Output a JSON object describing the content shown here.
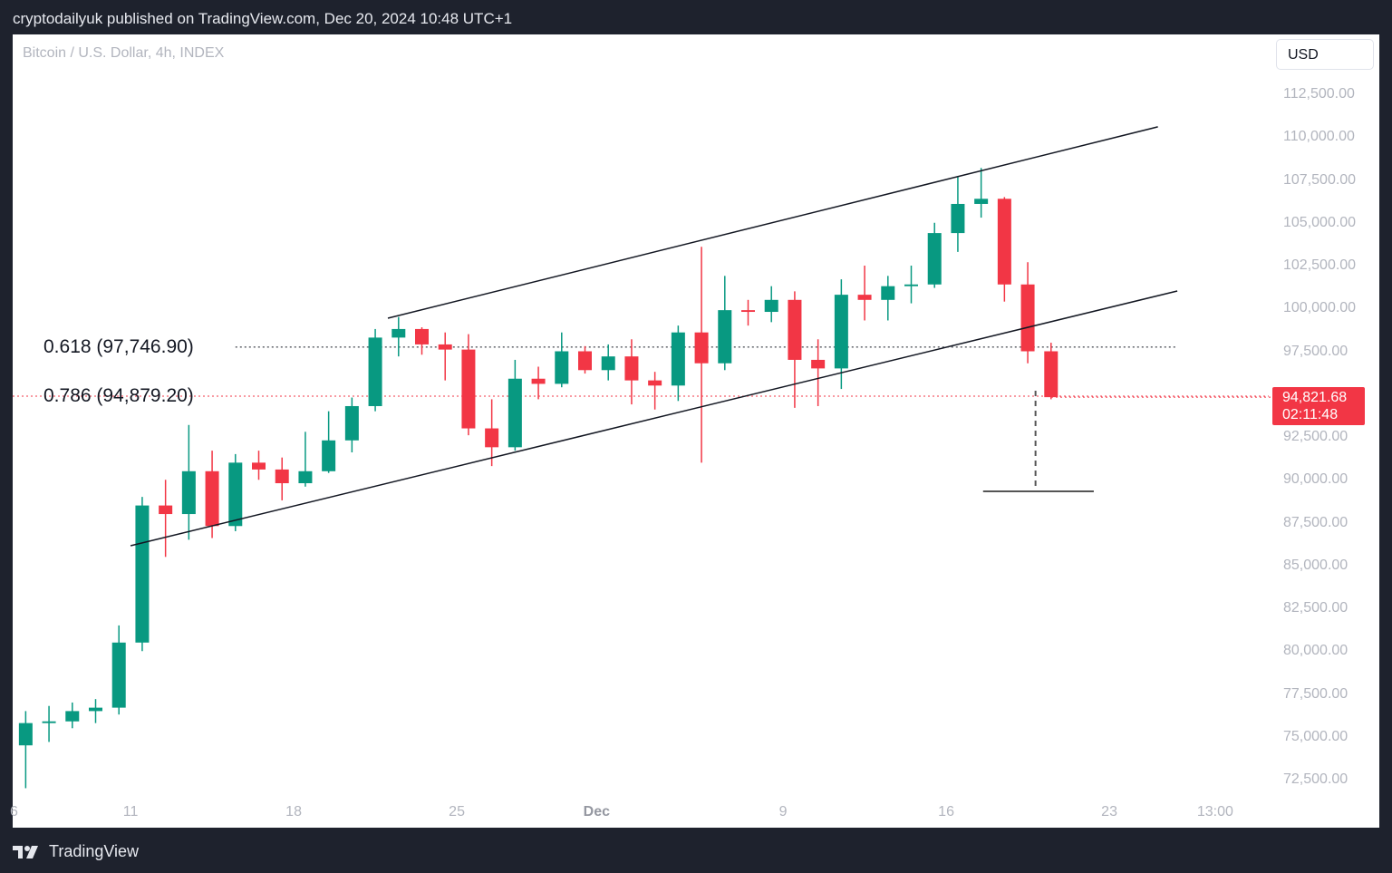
{
  "header": {
    "published": "cryptodailyuk published on TradingView.com, Dec 20, 2024 10:48 UTC+1"
  },
  "symbol": "Bitcoin / U.S. Dollar, 4h, INDEX",
  "currency_button": "USD",
  "brand": "TradingView",
  "colors": {
    "up": "#089981",
    "down": "#f23645",
    "line": "#131722",
    "background": "#1e222d"
  },
  "chart_data": {
    "type": "candlestick",
    "interval_shown": "4h",
    "ylim": [
      71500,
      114000
    ],
    "grid": false,
    "y_ticks": [
      "112,500.00",
      "110,000.00",
      "107,500.00",
      "105,000.00",
      "102,500.00",
      "100,000.00",
      "97,500.00",
      "92,500.00",
      "90,000.00",
      "87,500.00",
      "85,000.00",
      "82,500.00",
      "80,000.00",
      "77,500.00",
      "75,000.00",
      "72,500.00"
    ],
    "y_tick_values": [
      112500,
      110000,
      107500,
      105000,
      102500,
      100000,
      97500,
      92500,
      90000,
      87500,
      85000,
      82500,
      80000,
      77500,
      75000,
      72500
    ],
    "x_ticks": [
      {
        "label": "6",
        "date": "2024-11-06T00:00"
      },
      {
        "label": "11",
        "date": "2024-11-11T00:00"
      },
      {
        "label": "18",
        "date": "2024-11-18T00:00"
      },
      {
        "label": "25",
        "date": "2024-11-25T00:00"
      },
      {
        "label": "Dec",
        "date": "2024-12-01T00:00",
        "bold": true
      },
      {
        "label": "9",
        "date": "2024-12-09T00:00"
      },
      {
        "label": "16",
        "date": "2024-12-16T00:00"
      },
      {
        "label": "23",
        "date": "2024-12-23T00:00"
      },
      {
        "label": "13:00",
        "date": "2024-12-27T13:00"
      }
    ],
    "candles": [
      [
        "2024-11-06",
        74500,
        76500,
        72000,
        75800
      ],
      [
        "2024-11-07",
        75800,
        76800,
        74700,
        75900
      ],
      [
        "2024-11-08",
        75900,
        77000,
        75500,
        76500
      ],
      [
        "2024-11-09",
        76500,
        77200,
        75800,
        76700
      ],
      [
        "2024-11-10",
        76700,
        81500,
        76300,
        80500
      ],
      [
        "2024-11-11",
        80500,
        89000,
        80000,
        88500
      ],
      [
        "2024-11-12",
        88500,
        90000,
        85500,
        88000
      ],
      [
        "2024-11-13",
        88000,
        93200,
        86500,
        90500
      ],
      [
        "2024-11-14",
        90500,
        91700,
        86600,
        87300
      ],
      [
        "2024-11-15",
        87300,
        91500,
        87000,
        91000
      ],
      [
        "2024-11-16",
        91000,
        91700,
        90000,
        90600
      ],
      [
        "2024-11-17",
        90600,
        91300,
        88800,
        89800
      ],
      [
        "2024-11-18",
        89800,
        92800,
        89600,
        90500
      ],
      [
        "2024-11-19",
        90500,
        94000,
        90400,
        92300
      ],
      [
        "2024-11-20",
        92300,
        94800,
        91600,
        94300
      ],
      [
        "2024-11-21",
        94300,
        98800,
        94000,
        98300
      ],
      [
        "2024-11-22",
        98300,
        99500,
        97200,
        98800
      ],
      [
        "2024-11-23",
        98800,
        98900,
        97300,
        97900
      ],
      [
        "2024-11-24",
        97900,
        98600,
        95800,
        97600
      ],
      [
        "2024-11-25",
        97600,
        98500,
        92600,
        93000
      ],
      [
        "2024-11-26",
        93000,
        94700,
        90800,
        91900
      ],
      [
        "2024-11-27",
        91900,
        97000,
        91700,
        95900
      ],
      [
        "2024-11-28",
        95900,
        96600,
        94700,
        95600
      ],
      [
        "2024-11-29",
        95600,
        98600,
        95400,
        97500
      ],
      [
        "2024-11-30",
        97500,
        97800,
        96200,
        96400
      ],
      [
        "2024-12-01",
        96400,
        97900,
        95800,
        97200
      ],
      [
        "2024-12-02",
        97200,
        98200,
        94400,
        95800
      ],
      [
        "2024-12-03",
        95800,
        96300,
        94100,
        95500
      ],
      [
        "2024-12-04",
        95500,
        99000,
        94600,
        98600
      ],
      [
        "2024-12-05",
        98600,
        103600,
        91000,
        96800
      ],
      [
        "2024-12-06",
        96800,
        101900,
        96400,
        99900
      ],
      [
        "2024-12-07",
        99900,
        100500,
        99000,
        99800
      ],
      [
        "2024-12-08",
        99800,
        101300,
        99200,
        100500
      ],
      [
        "2024-12-09",
        100500,
        101000,
        94200,
        97000
      ],
      [
        "2024-12-10",
        97000,
        98200,
        94300,
        96500
      ],
      [
        "2024-12-11",
        96500,
        101700,
        95300,
        100800
      ],
      [
        "2024-12-12",
        100800,
        102500,
        99300,
        100500
      ],
      [
        "2024-12-13",
        100500,
        101900,
        99300,
        101300
      ],
      [
        "2024-12-14",
        101300,
        102500,
        100300,
        101400
      ],
      [
        "2024-12-15",
        101400,
        105000,
        101200,
        104400
      ],
      [
        "2024-12-16",
        104400,
        107700,
        103300,
        106100
      ],
      [
        "2024-12-17",
        106100,
        108200,
        105300,
        106400
      ],
      [
        "2024-12-18",
        106400,
        106500,
        100400,
        101400
      ],
      [
        "2024-12-19",
        101400,
        102700,
        96800,
        97500
      ],
      [
        "2024-12-20",
        97500,
        98000,
        94700,
        94821.68
      ]
    ],
    "trendlines": [
      {
        "name": "channel-upper",
        "from": [
          "2024-11-22T01:00",
          99430
        ],
        "to": [
          "2024-12-25T02:00",
          110600
        ]
      },
      {
        "name": "channel-lower",
        "from": [
          "2024-11-11T00:00",
          86150
        ],
        "to": [
          "2024-12-25T22:00",
          101020
        ]
      }
    ],
    "fib_levels": [
      {
        "label": "0.618 (97,746.90)",
        "ratio": 0.618,
        "price": 97746.9,
        "color": "#131722",
        "from": "2024-11-15T12:00",
        "to": "2024-12-25T22:00"
      },
      {
        "label": "0.786 (94,879.20)",
        "ratio": 0.786,
        "price": 94879.2,
        "color": "#f23645"
      }
    ],
    "target": {
      "date": "2024-12-19T20:00",
      "from_price": 95200,
      "price": 89325,
      "from": "2024-12-17T14:00",
      "to": "2024-12-22T08:00"
    },
    "last_price": {
      "value": "94,821.68",
      "countdown": "02:11:48",
      "price": 94821.68,
      "color": "#f23645"
    }
  }
}
